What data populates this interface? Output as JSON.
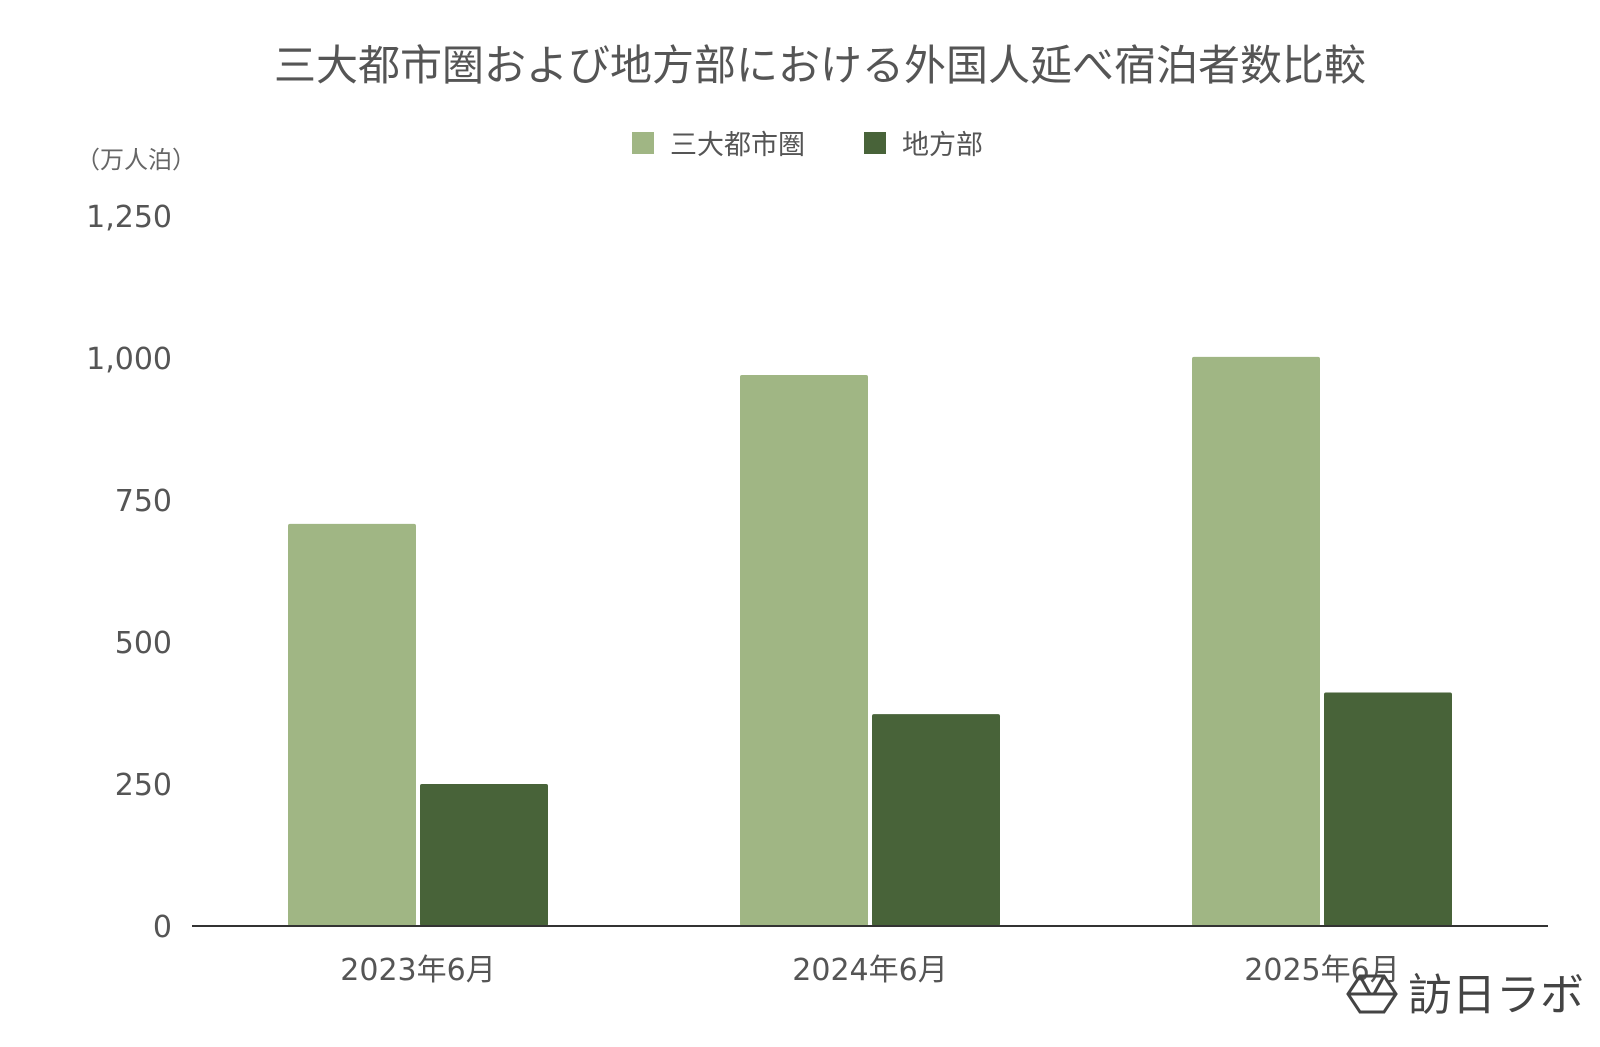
{
  "chart_data": {
    "type": "bar",
    "title": "三大都市圏および地方部における外国人延べ宿泊者数比較",
    "unit_label": "（万人泊）",
    "categories": [
      "2023年6月",
      "2024年6月",
      "2025年6月"
    ],
    "series": [
      {
        "name": "三大都市圏",
        "color": "#a0b684",
        "values": [
          708,
          970,
          1002
        ]
      },
      {
        "name": "地方部",
        "color": "#486339",
        "values": [
          250,
          373,
          411
        ]
      }
    ],
    "ylim": [
      0,
      1250
    ],
    "yticks": [
      0,
      250,
      500,
      750,
      1000,
      1250
    ],
    "ytick_labels": [
      "0",
      "250",
      "500",
      "750",
      "1,000",
      "1,250"
    ],
    "grid": false,
    "legend_position": "top-center",
    "axis_color": "#333333"
  },
  "branding": {
    "logo_text": "訪日ラボ",
    "logo_icon": "hexagon-logo-icon"
  }
}
